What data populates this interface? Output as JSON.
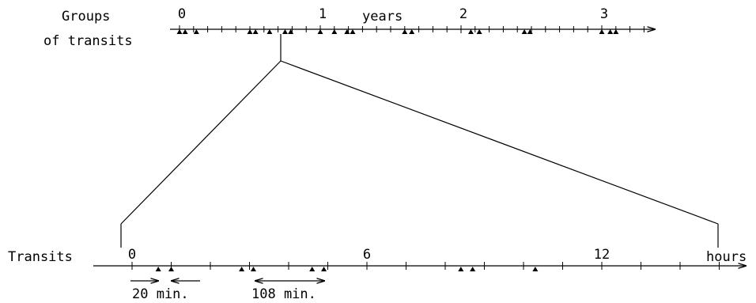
{
  "top_axis": {
    "label_line1": "Groups",
    "label_line2": "of transits",
    "unit": "years",
    "tick_labels": [
      "0",
      "1",
      "2",
      "3"
    ],
    "range": [
      0,
      3.3
    ],
    "minor_tick_step": 0.1,
    "transit_times": [
      0.0,
      0.04,
      0.12,
      0.5,
      0.54,
      0.64,
      0.75,
      0.79,
      1.0,
      1.1,
      1.19,
      1.23,
      1.6,
      1.65,
      2.07,
      2.13,
      2.45,
      2.49,
      3.0,
      3.06,
      3.1
    ],
    "zoom_group_time": 0.77
  },
  "bottom_axis": {
    "label": "Transits",
    "unit": "hours",
    "tick_labels": [
      "0",
      "6",
      "12"
    ],
    "range": [
      0,
      16.3
    ],
    "minor_tick_step": 1,
    "transit_times": [
      0.67,
      1.0,
      2.8,
      3.1,
      4.6,
      4.9,
      8.4,
      8.7,
      10.3
    ],
    "interval_short": "20 min.",
    "interval_long": "108 min.",
    "interval_short_hours": [
      0.0,
      1.67
    ],
    "interval_long_hours": [
      3.1,
      4.9
    ]
  },
  "colors": {
    "ink": "#000000",
    "background": "#ffffff"
  }
}
